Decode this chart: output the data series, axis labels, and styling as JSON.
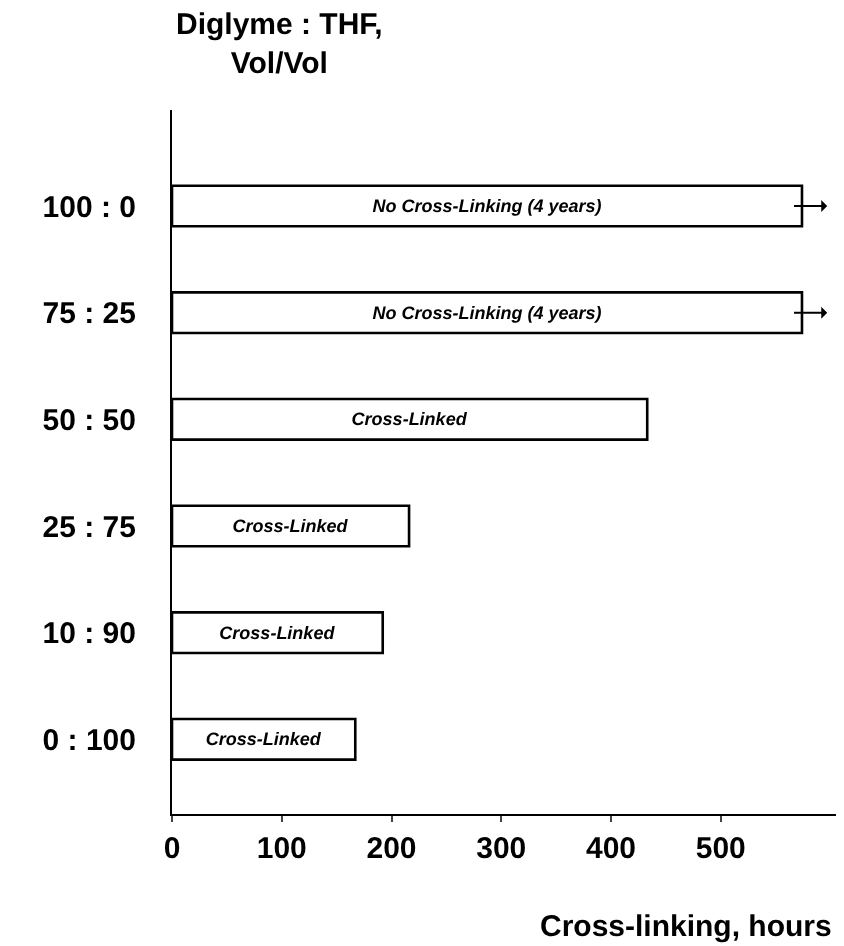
{
  "chart_data": {
    "type": "bar",
    "orientation": "horizontal",
    "ylabel": "Diglyme : THF,\nVol/Vol",
    "xlabel": "Cross-linking, hours",
    "categories": [
      "100 : 0",
      "75 : 25",
      "50 : 50",
      "25 : 75",
      "10 : 90",
      "0 : 100"
    ],
    "values": [
      574,
      574,
      433,
      216,
      192,
      167
    ],
    "annotations": [
      "No Cross-Linking (4 years)",
      "No Cross-Linking (4 years)",
      "Cross-Linked",
      "Cross-Linked",
      "Cross-Linked",
      "Cross-Linked"
    ],
    "color": "#ffffff",
    "xlim": [
      0,
      605
    ],
    "xticks": [
      0,
      100,
      200,
      300,
      400,
      500
    ]
  }
}
